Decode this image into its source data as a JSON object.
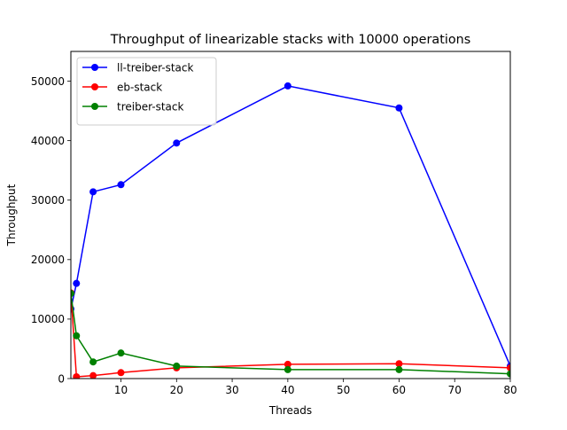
{
  "chart_data": {
    "type": "line",
    "title": "Throughput of linearizable stacks with 10000 operations",
    "xlabel": "Threads",
    "ylabel": "Throughput",
    "xlim": [
      1,
      80
    ],
    "ylim": [
      0,
      55000
    ],
    "xticks": [
      10,
      20,
      30,
      40,
      50,
      60,
      70,
      80
    ],
    "yticks": [
      0,
      10000,
      20000,
      30000,
      40000,
      50000
    ],
    "grid": false,
    "legend_position": "upper-left",
    "series": [
      {
        "name": "ll-treiber-stack",
        "color": "#0000ff",
        "x": [
          1,
          2,
          5,
          10,
          20,
          40,
          60,
          80
        ],
        "values": [
          11700,
          16000,
          31400,
          32600,
          39600,
          49200,
          45500,
          2100
        ]
      },
      {
        "name": "eb-stack",
        "color": "#ff0000",
        "x": [
          1,
          2,
          5,
          10,
          20,
          40,
          60,
          80
        ],
        "values": [
          14400,
          300,
          500,
          1000,
          1800,
          2400,
          2500,
          1800
        ]
      },
      {
        "name": "treiber-stack",
        "color": "#008000",
        "x": [
          1,
          2,
          5,
          10,
          20,
          40,
          60,
          80
        ],
        "values": [
          14300,
          7200,
          2800,
          4300,
          2100,
          1500,
          1500,
          800
        ]
      }
    ]
  }
}
